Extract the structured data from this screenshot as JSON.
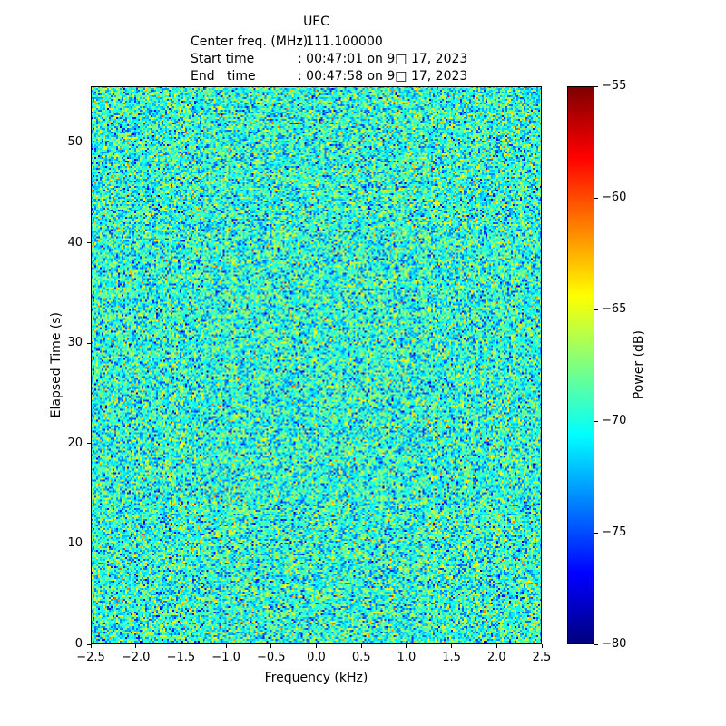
{
  "header": {
    "lines": [
      {
        "label": "Center freq. (MHz)",
        "value": ": 111.100000"
      },
      {
        "label": "Start time",
        "value": ": 00:47:01 on 9□ 17, 2023"
      },
      {
        "label": "End   time",
        "value": ": 00:47:58 on 9□ 17, 2023"
      }
    ]
  },
  "chart_data": {
    "type": "heatmap",
    "title": "UEC",
    "subtitle_lines": [
      "Center freq. (MHz) : 111.100000",
      "Start time : 00:47:01 on 9□ 17, 2023",
      "End   time : 00:47:58 on 9□ 17, 2023"
    ],
    "xlabel": "Frequency (kHz)",
    "ylabel": "Elapsed Time (s)",
    "xlim": [
      -2.5,
      2.5
    ],
    "ylim": [
      0,
      55.6
    ],
    "xticks": [
      -2.5,
      -2.0,
      -1.5,
      -1.0,
      -0.5,
      0.0,
      0.5,
      1.0,
      1.5,
      2.0,
      2.5
    ],
    "xtick_labels": [
      "−2.5",
      "−2.0",
      "−1.5",
      "−1.0",
      "−0.5",
      "0.0",
      "0.5",
      "1.0",
      "1.5",
      "2.0",
      "2.5"
    ],
    "yticks": [
      0,
      10,
      20,
      30,
      40,
      50
    ],
    "ytick_labels": [
      "0",
      "10",
      "20",
      "30",
      "40",
      "50"
    ],
    "grid": false,
    "legend": null,
    "colorbar": {
      "label": "Power (dB)",
      "min": -80,
      "max": -55,
      "ticks": [
        -55,
        -60,
        -65,
        -70,
        -75,
        -80
      ],
      "tick_labels": [
        "−55",
        "−60",
        "−65",
        "−70",
        "−75",
        "−80"
      ],
      "colormap": "jet",
      "position": "right"
    },
    "data_summary": "Waterfall spectrogram of broadband noise over ~57 s and ±2.5 kHz: power values are spatially uncorrelated random noise with mean ≈ −69.8 dB and std ≈ 3.0 dB, ranging roughly −80 to −58 dB (mostly cyan/green with sparse yellow-orange and blue speckles); no coherent signal line visible.",
    "noise_model": {
      "distribution": "gaussian",
      "mean_db": -69.8,
      "sigma_db": 3.0,
      "seed": 20230917,
      "cols": 249,
      "rows": 308
    }
  }
}
